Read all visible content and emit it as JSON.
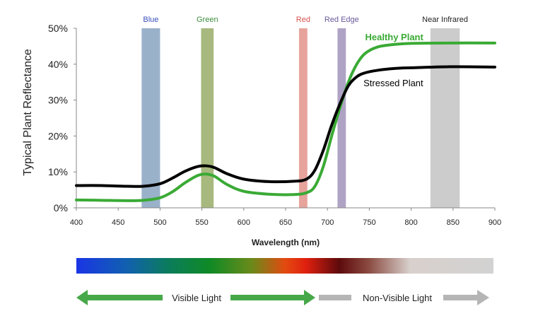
{
  "chart_data": {
    "type": "line",
    "xlabel": "Wavelength (nm)",
    "ylabel": "Typical Plant Reflectance",
    "xlim": [
      400,
      900
    ],
    "ylim": [
      0,
      50
    ],
    "xticks": [
      400,
      450,
      500,
      550,
      600,
      650,
      700,
      750,
      800,
      850,
      900
    ],
    "yticks": [
      0,
      10,
      20,
      30,
      40,
      50
    ],
    "xtick_labels": [
      "400",
      "450",
      "500",
      "550",
      "600",
      "650",
      "700",
      "750",
      "800",
      "850",
      "900"
    ],
    "ytick_labels": [
      "0%",
      "10%",
      "20%",
      "30%",
      "40%",
      "50%"
    ],
    "grid": false,
    "bands": [
      {
        "label": "Blue",
        "from": 478,
        "to": 500,
        "color": "#8fa9c4",
        "label_color": "#3a4fbf"
      },
      {
        "label": "Green",
        "from": 549,
        "to": 564,
        "color": "#9db170",
        "label_color": "#3c8d3c"
      },
      {
        "label": "Red",
        "from": 666,
        "to": 676,
        "color": "#e39a92",
        "label_color": "#d9534f"
      },
      {
        "label": "Red Edge",
        "from": 712,
        "to": 722,
        "color": "#a699bf",
        "label_color": "#6a5a9c"
      },
      {
        "label": "Near Infrared",
        "from": 823,
        "to": 858,
        "color": "#c7c7c7",
        "label_color": "#222222"
      }
    ],
    "series": [
      {
        "name": "Healthy Plant",
        "color": "#3aaa35",
        "x": [
          400,
          430,
          460,
          480,
          500,
          515,
          530,
          545,
          555,
          565,
          580,
          600,
          630,
          660,
          675,
          685,
          695,
          705,
          715,
          725,
          735,
          745,
          760,
          780,
          800,
          850,
          900
        ],
        "y": [
          2.2,
          2.1,
          2.0,
          2.1,
          2.8,
          4.5,
          7.0,
          9.0,
          9.4,
          8.8,
          6.5,
          4.6,
          3.8,
          3.7,
          4.2,
          6.0,
          11.5,
          20.0,
          28.0,
          35.0,
          40.0,
          43.0,
          44.8,
          45.5,
          45.8,
          45.9,
          45.9
        ]
      },
      {
        "name": "Stressed Plant",
        "color": "#000000",
        "x": [
          400,
          430,
          460,
          480,
          500,
          515,
          530,
          545,
          555,
          565,
          580,
          600,
          630,
          660,
          675,
          685,
          695,
          705,
          715,
          725,
          735,
          745,
          760,
          780,
          800,
          850,
          900
        ],
        "y": [
          6.2,
          6.2,
          6.0,
          6.0,
          6.7,
          8.3,
          10.2,
          11.5,
          11.7,
          11.2,
          9.5,
          8.0,
          7.3,
          7.4,
          8.0,
          10.5,
          16.0,
          23.0,
          29.0,
          34.0,
          36.5,
          37.6,
          38.3,
          38.8,
          39.0,
          39.3,
          39.2
        ]
      }
    ],
    "spectrum_bar": {
      "stops": [
        {
          "offset": 0.0,
          "color": "#1a35e6"
        },
        {
          "offset": 0.12,
          "color": "#1160b0"
        },
        {
          "offset": 0.22,
          "color": "#0b7c5c"
        },
        {
          "offset": 0.32,
          "color": "#0f8a25"
        },
        {
          "offset": 0.42,
          "color": "#6a8a1a"
        },
        {
          "offset": 0.5,
          "color": "#e34a10"
        },
        {
          "offset": 0.55,
          "color": "#e0200f"
        },
        {
          "offset": 0.63,
          "color": "#5e0a0c"
        },
        {
          "offset": 0.7,
          "color": "#8a4a40"
        },
        {
          "offset": 0.8,
          "color": "#d8d0cc"
        },
        {
          "offset": 1.0,
          "color": "#d2d2d2"
        }
      ]
    },
    "arrows": [
      {
        "label": "Visible Light",
        "color": "#47a84a"
      },
      {
        "label": "Non-Visible Light",
        "color": "#b5b5b5"
      }
    ]
  }
}
